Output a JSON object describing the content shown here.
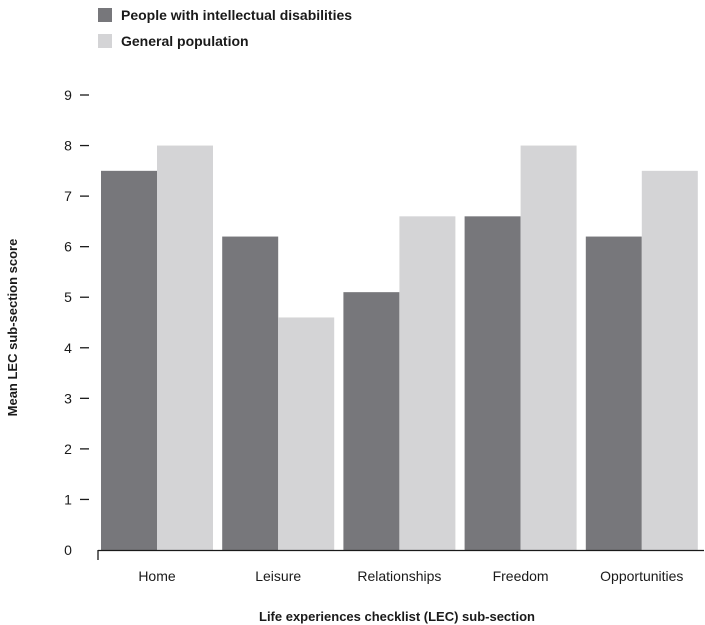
{
  "chart_data": {
    "type": "bar",
    "categories": [
      "Home",
      "Leisure",
      "Relationships",
      "Freedom",
      "Opportunities"
    ],
    "series": [
      {
        "name": "People with intellectual disabilities",
        "values": [
          7.5,
          6.2,
          5.1,
          6.6,
          6.2
        ],
        "color": "#77777b"
      },
      {
        "name": "General population",
        "values": [
          8.0,
          4.6,
          6.6,
          8.0,
          7.5
        ],
        "color": "#d4d4d6"
      }
    ],
    "title": "",
    "xlabel": "Life experiences checklist (LEC) sub-section",
    "ylabel": "Mean LEC sub-section score",
    "ylim": [
      0,
      9
    ],
    "yticks": [
      0,
      1,
      2,
      3,
      4,
      5,
      6,
      7,
      8,
      9
    ],
    "grid": false,
    "legend_position": "top-left"
  }
}
